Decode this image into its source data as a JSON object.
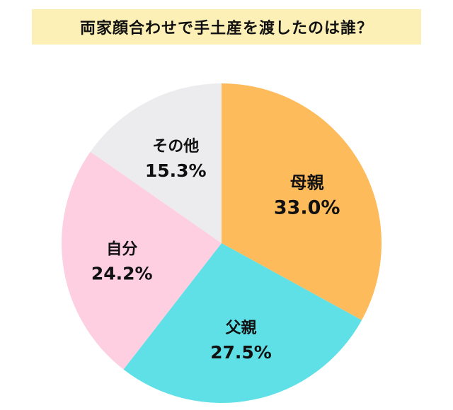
{
  "chart_data": {
    "type": "pie",
    "title": "両家顔合わせで手土産を渡したのは誰？",
    "slices": [
      {
        "label": "母親",
        "value": 33.0,
        "display": "33.0%",
        "color": "#fdbb5c"
      },
      {
        "label": "父親",
        "value": 27.5,
        "display": "27.5%",
        "color": "#5ee0e6"
      },
      {
        "label": "自分",
        "value": 24.2,
        "display": "24.2%",
        "color": "#fdcfe0"
      },
      {
        "label": "その他",
        "value": 15.3,
        "display": "15.3%",
        "color": "#ececee"
      }
    ],
    "start_angle": "12 o'clock",
    "direction": "clockwise",
    "legend": "none"
  }
}
